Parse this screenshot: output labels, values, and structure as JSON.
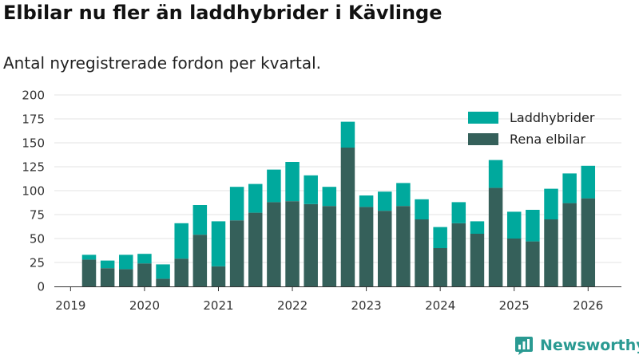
{
  "chart_data": {
    "type": "bar",
    "stacked": true,
    "title": "Elbilar nu fler än laddhybrider i Kävlinge",
    "subtitle": "Antal nyregistrerade fordon per kvartal.",
    "xlabel": "",
    "ylabel": "",
    "ylim": [
      0,
      200
    ],
    "yticks": [
      "0",
      "25",
      "50",
      "75",
      "100",
      "125",
      "150",
      "175",
      "200"
    ],
    "xticks": [
      "2019",
      "2020",
      "2021",
      "2022",
      "2023",
      "2024",
      "2025",
      "2026"
    ],
    "grid": true,
    "legend_position": "top-right",
    "categories": [
      "2019 Q2",
      "2019 Q3",
      "2019 Q4",
      "2020 Q1",
      "2020 Q2",
      "2020 Q3",
      "2020 Q4",
      "2021 Q1",
      "2021 Q2",
      "2021 Q3",
      "2021 Q4",
      "2022 Q1",
      "2022 Q2",
      "2022 Q3",
      "2022 Q4",
      "2023 Q1",
      "2023 Q2",
      "2023 Q3",
      "2023 Q4",
      "2024 Q1",
      "2024 Q2",
      "2024 Q3",
      "2024 Q4",
      "2025 Q1",
      "2025 Q2",
      "2025 Q3",
      "2025 Q4",
      "2026 Q1"
    ],
    "series": [
      {
        "name": "Rena elbilar",
        "color": "#35605a",
        "values": [
          28,
          19,
          18,
          24,
          8,
          29,
          54,
          21,
          69,
          77,
          88,
          89,
          86,
          84,
          145,
          83,
          79,
          84,
          70,
          40,
          66,
          55,
          103,
          50,
          47,
          70,
          87,
          92
        ]
      },
      {
        "name": "Laddhybrider",
        "color": "#00a99d",
        "values": [
          5,
          8,
          15,
          10,
          15,
          37,
          31,
          47,
          35,
          30,
          34,
          41,
          30,
          20,
          27,
          12,
          20,
          24,
          21,
          22,
          22,
          13,
          29,
          28,
          33,
          32,
          31,
          34
        ]
      }
    ]
  },
  "brand": {
    "name": "Newsworthy",
    "color": "#2a9a92"
  }
}
